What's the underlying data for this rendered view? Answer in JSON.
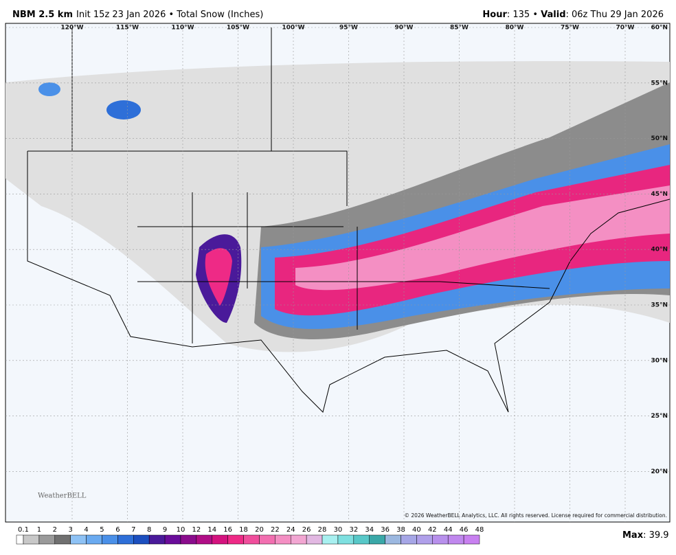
{
  "header": {
    "model": "NBM 2.5 km",
    "init": "Init 15z 23 Jan 2026 • Total Snow (Inches)",
    "hour_label": "Hour",
    "hour": 135,
    "valid_label": "Valid",
    "valid": "06z Thu 29 Jan 2026"
  },
  "map": {
    "longitudes": [
      "120°W",
      "115°W",
      "110°W",
      "105°W",
      "100°W",
      "95°W",
      "90°W",
      "85°W",
      "80°W",
      "75°W",
      "70°W"
    ],
    "latitudes": [
      "60°N",
      "55°N",
      "50°N",
      "45°N",
      "40°N",
      "35°N",
      "30°N",
      "25°N",
      "20°N"
    ],
    "logo": "WeatherBELL",
    "copyright": "© 2026 WeatherBELL Analytics, LLC. All rights reserved. License required for commercial distribution."
  },
  "colorbar": {
    "levels": [
      0.1,
      1,
      2,
      3,
      4,
      5,
      6,
      7,
      8,
      9,
      10,
      12,
      14,
      16,
      18,
      20,
      22,
      24,
      26,
      28,
      30,
      32,
      34,
      36,
      38,
      40,
      42,
      44,
      46,
      48
    ],
    "colors": [
      "#c8c8c8",
      "#9a9a9a",
      "#707070",
      "#8ec2f5",
      "#6aaaf0",
      "#4a90e8",
      "#2e6fd8",
      "#1c4fbf",
      "#4a1a9a",
      "#6a0d9a",
      "#8a0c8c",
      "#b00e86",
      "#d4137e",
      "#ee2a86",
      "#f04e9c",
      "#f26fb0",
      "#f48fc3",
      "#f2a6d2",
      "#e2b8e2",
      "#a8f0f0",
      "#7ee0e0",
      "#58c8c8",
      "#3aa8a8",
      "#9cb8e0",
      "#a6a6e6",
      "#b0a0ea",
      "#b890ec",
      "#c088ee",
      "#c880f0"
    ]
  },
  "footer": {
    "max_label": "Max",
    "max": 39.9
  }
}
